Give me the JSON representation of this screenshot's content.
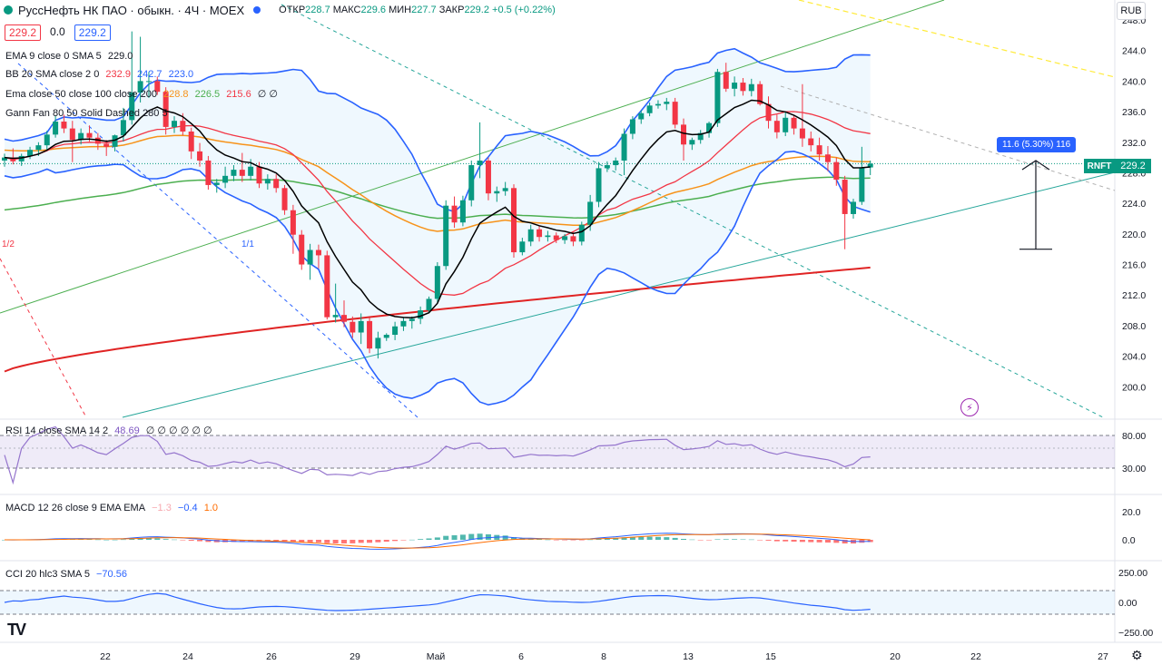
{
  "header": {
    "symbol": "РуссНефть НК ПАО · обыкн. · 4Ч · MOEX",
    "open_label": "ОТКР",
    "open": "228.7",
    "high_label": "МАКС",
    "high": "229.6",
    "low_label": "МИН",
    "low": "227.7",
    "close_label": "ЗАКР",
    "close": "229.2",
    "change": "+0.5 (+0.22%)"
  },
  "price_boxes": {
    "sell": "229.2",
    "spread": "0.0",
    "buy": "229.2"
  },
  "indicators": {
    "ema": {
      "name": "EMA 9 close 0 SMA 5",
      "value": "229.0"
    },
    "bb": {
      "name": "BB 20 SMA close 2 0",
      "basis": "232.9",
      "upper": "242.7",
      "lower": "223.0"
    },
    "ema2": {
      "name": "Ema close 50 close 100 close 200",
      "v1": "228.8",
      "v2": "226.5",
      "v3": "215.6",
      "extra": "∅ ∅"
    },
    "gann": {
      "name": "Gann Fan 80 50 Solid Dashed 280 5"
    },
    "rsi": {
      "name": "RSI 14 close SMA 14 2",
      "value": "48.69",
      "extra": "∅ ∅ ∅ ∅ ∅ ∅"
    },
    "macd": {
      "name": "MACD 12 26 close 9 EMA EMA",
      "hist": "−1.3",
      "macd": "−0.4",
      "signal": "1.0"
    },
    "cci": {
      "name": "CCI 20 hlc3 SMA 5",
      "value": "−70.56"
    }
  },
  "currency": "RUB",
  "ticker_label": "RNFT",
  "last_price": "229.2",
  "measure_label": "11.6 (5.30%) 116",
  "gann_labels": [
    "1/2",
    "1/1"
  ],
  "price_axis": [
    "248.0",
    "244.0",
    "240.0",
    "236.0",
    "232.0",
    "228.0",
    "224.0",
    "220.0",
    "216.0",
    "212.0",
    "208.0",
    "204.0",
    "200.0"
  ],
  "rsi_axis": [
    "80.00",
    "30.00"
  ],
  "macd_axis": [
    "20.0",
    "0.0"
  ],
  "cci_axis": [
    "250.00",
    "0.00",
    "−250.00"
  ],
  "time_axis": [
    "22",
    "24",
    "26",
    "29",
    "Май",
    "6",
    "8",
    "13",
    "15",
    "20",
    "22",
    "27"
  ],
  "colors": {
    "up": "#089981",
    "down": "#f23645",
    "bb": "#2962ff",
    "ema_black": "#000000",
    "ema_orange": "#f7931a",
    "ema_green": "#4caf50",
    "ema_red": "#e02424",
    "rsi": "#9575cd"
  },
  "chart_data": {
    "type": "candlestick",
    "symbol": "RNFT",
    "timeframe": "4Ч",
    "ylim": [
      196,
      248
    ],
    "candles": [
      [
        229.6,
        230.5,
        228.8,
        230.0
      ],
      [
        230.0,
        231.2,
        229.1,
        229.5
      ],
      [
        229.5,
        230.5,
        228.9,
        230.2
      ],
      [
        230.2,
        231.4,
        229.8,
        231.0
      ],
      [
        231.0,
        232.0,
        230.2,
        231.6
      ],
      [
        231.6,
        233.5,
        231.0,
        233.0
      ],
      [
        233.0,
        235.5,
        232.6,
        234.7
      ],
      [
        234.7,
        235.6,
        233.2,
        233.8
      ],
      [
        233.8,
        234.8,
        229.4,
        232.3
      ],
      [
        232.3,
        233.8,
        231.7,
        233.2
      ],
      [
        233.2,
        234.2,
        232.1,
        232.6
      ],
      [
        232.6,
        233.2,
        231.0,
        231.8
      ],
      [
        231.8,
        232.3,
        230.2,
        231.4
      ],
      [
        231.4,
        233.0,
        230.8,
        232.9
      ],
      [
        232.9,
        236.5,
        232.1,
        234.9
      ],
      [
        234.9,
        246.5,
        234.3,
        238.5
      ],
      [
        238.5,
        245.8,
        237.2,
        240.0
      ],
      [
        240.0,
        241.2,
        237.8,
        240.0
      ],
      [
        240.0,
        240.6,
        238.2,
        238.6
      ],
      [
        238.6,
        239.2,
        233.0,
        234.0
      ],
      [
        234.0,
        235.4,
        233.2,
        234.8
      ],
      [
        234.8,
        235.8,
        232.9,
        233.4
      ],
      [
        233.4,
        233.9,
        229.8,
        230.8
      ],
      [
        230.8,
        231.9,
        228.8,
        229.6
      ],
      [
        229.6,
        230.2,
        225.8,
        226.4
      ],
      [
        226.4,
        227.2,
        225.4,
        226.7
      ],
      [
        226.7,
        228.8,
        226.0,
        227.6
      ],
      [
        227.6,
        229.0,
        226.9,
        228.4
      ],
      [
        228.4,
        230.6,
        226.8,
        227.6
      ],
      [
        227.6,
        229.8,
        227.0,
        228.8
      ],
      [
        228.8,
        229.4,
        226.0,
        226.6
      ],
      [
        226.6,
        227.8,
        225.8,
        227.2
      ],
      [
        227.2,
        227.8,
        225.4,
        226.0
      ],
      [
        226.0,
        226.4,
        222.5,
        223.1
      ],
      [
        223.1,
        223.8,
        217.4,
        219.9
      ],
      [
        219.9,
        220.5,
        215.3,
        216.0
      ],
      [
        216.0,
        218.7,
        214.0,
        217.9
      ],
      [
        217.9,
        218.6,
        215.5,
        217.2
      ],
      [
        217.2,
        217.8,
        208.8,
        209.1
      ],
      [
        209.1,
        213.5,
        208.4,
        209.4
      ],
      [
        209.4,
        211.3,
        207.8,
        208.5
      ],
      [
        208.5,
        209.2,
        206.4,
        207.1
      ],
      [
        207.1,
        209.6,
        205.6,
        208.6
      ],
      [
        208.6,
        209.0,
        204.4,
        205.0
      ],
      [
        205.0,
        207.2,
        203.7,
        206.4
      ],
      [
        206.4,
        207.0,
        206.0,
        206.8
      ],
      [
        206.8,
        208.5,
        206.1,
        207.9
      ],
      [
        207.9,
        209.1,
        207.3,
        208.6
      ],
      [
        208.6,
        209.2,
        207.6,
        208.9
      ],
      [
        208.9,
        210.5,
        208.2,
        210.0
      ],
      [
        210.0,
        211.8,
        209.6,
        211.5
      ],
      [
        211.5,
        216.3,
        211.0,
        215.8
      ],
      [
        215.8,
        224.4,
        215.3,
        223.7
      ],
      [
        223.7,
        224.9,
        220.8,
        221.5
      ],
      [
        221.5,
        225.0,
        221.0,
        224.4
      ],
      [
        224.4,
        229.6,
        223.6,
        229.0
      ],
      [
        229.0,
        234.6,
        227.3,
        229.6
      ],
      [
        229.6,
        230.0,
        224.4,
        225.3
      ],
      [
        225.3,
        226.2,
        224.2,
        225.6
      ],
      [
        225.6,
        226.8,
        225.0,
        226.0
      ],
      [
        226.0,
        226.5,
        216.9,
        217.6
      ],
      [
        217.6,
        219.5,
        217.2,
        219.0
      ],
      [
        219.0,
        221.2,
        218.4,
        220.6
      ],
      [
        220.6,
        221.0,
        219.0,
        219.6
      ],
      [
        219.6,
        220.4,
        219.0,
        219.8
      ],
      [
        219.8,
        220.2,
        218.8,
        219.2
      ],
      [
        219.2,
        220.0,
        218.7,
        219.7
      ],
      [
        219.7,
        220.2,
        218.4,
        219.0
      ],
      [
        219.0,
        221.6,
        218.5,
        221.2
      ],
      [
        221.2,
        225.1,
        220.4,
        224.2
      ],
      [
        224.2,
        229.4,
        223.5,
        228.6
      ],
      [
        228.6,
        229.5,
        228.1,
        229.0
      ],
      [
        229.0,
        230.0,
        228.3,
        229.6
      ],
      [
        229.6,
        233.8,
        227.7,
        233.1
      ],
      [
        233.1,
        235.4,
        232.4,
        235.0
      ],
      [
        235.0,
        236.2,
        234.4,
        235.8
      ],
      [
        235.8,
        237.2,
        235.4,
        236.8
      ],
      [
        236.8,
        237.5,
        236.4,
        237.0
      ],
      [
        237.0,
        237.8,
        236.2,
        237.3
      ],
      [
        237.3,
        237.8,
        233.8,
        234.3
      ],
      [
        234.3,
        235.1,
        229.6,
        231.7
      ],
      [
        231.7,
        232.6,
        231.0,
        232.3
      ],
      [
        232.3,
        233.6,
        231.8,
        233.2
      ],
      [
        233.2,
        234.7,
        232.6,
        234.5
      ],
      [
        234.5,
        241.6,
        234.0,
        241.2
      ],
      [
        241.2,
        242.4,
        238.6,
        239.0
      ],
      [
        239.0,
        240.6,
        238.0,
        239.8
      ],
      [
        239.8,
        240.4,
        238.1,
        238.7
      ],
      [
        238.7,
        240.3,
        238.0,
        239.6
      ],
      [
        239.6,
        240.0,
        236.8,
        237.0
      ],
      [
        237.0,
        238.0,
        233.8,
        234.8
      ],
      [
        234.8,
        235.6,
        232.5,
        233.3
      ],
      [
        233.3,
        236.0,
        232.8,
        235.2
      ],
      [
        235.2,
        235.6,
        233.0,
        233.8
      ],
      [
        233.8,
        239.6,
        231.4,
        232.5
      ],
      [
        232.5,
        233.4,
        230.8,
        231.6
      ],
      [
        231.6,
        232.6,
        229.6,
        230.4
      ],
      [
        230.4,
        231.5,
        228.2,
        229.4
      ],
      [
        229.4,
        230.0,
        226.3,
        227.1
      ],
      [
        227.1,
        227.6,
        218.0,
        222.6
      ],
      [
        222.6,
        224.6,
        222.0,
        224.2
      ],
      [
        224.2,
        231.4,
        223.8,
        228.7
      ],
      [
        228.7,
        229.6,
        227.7,
        229.2
      ]
    ]
  }
}
